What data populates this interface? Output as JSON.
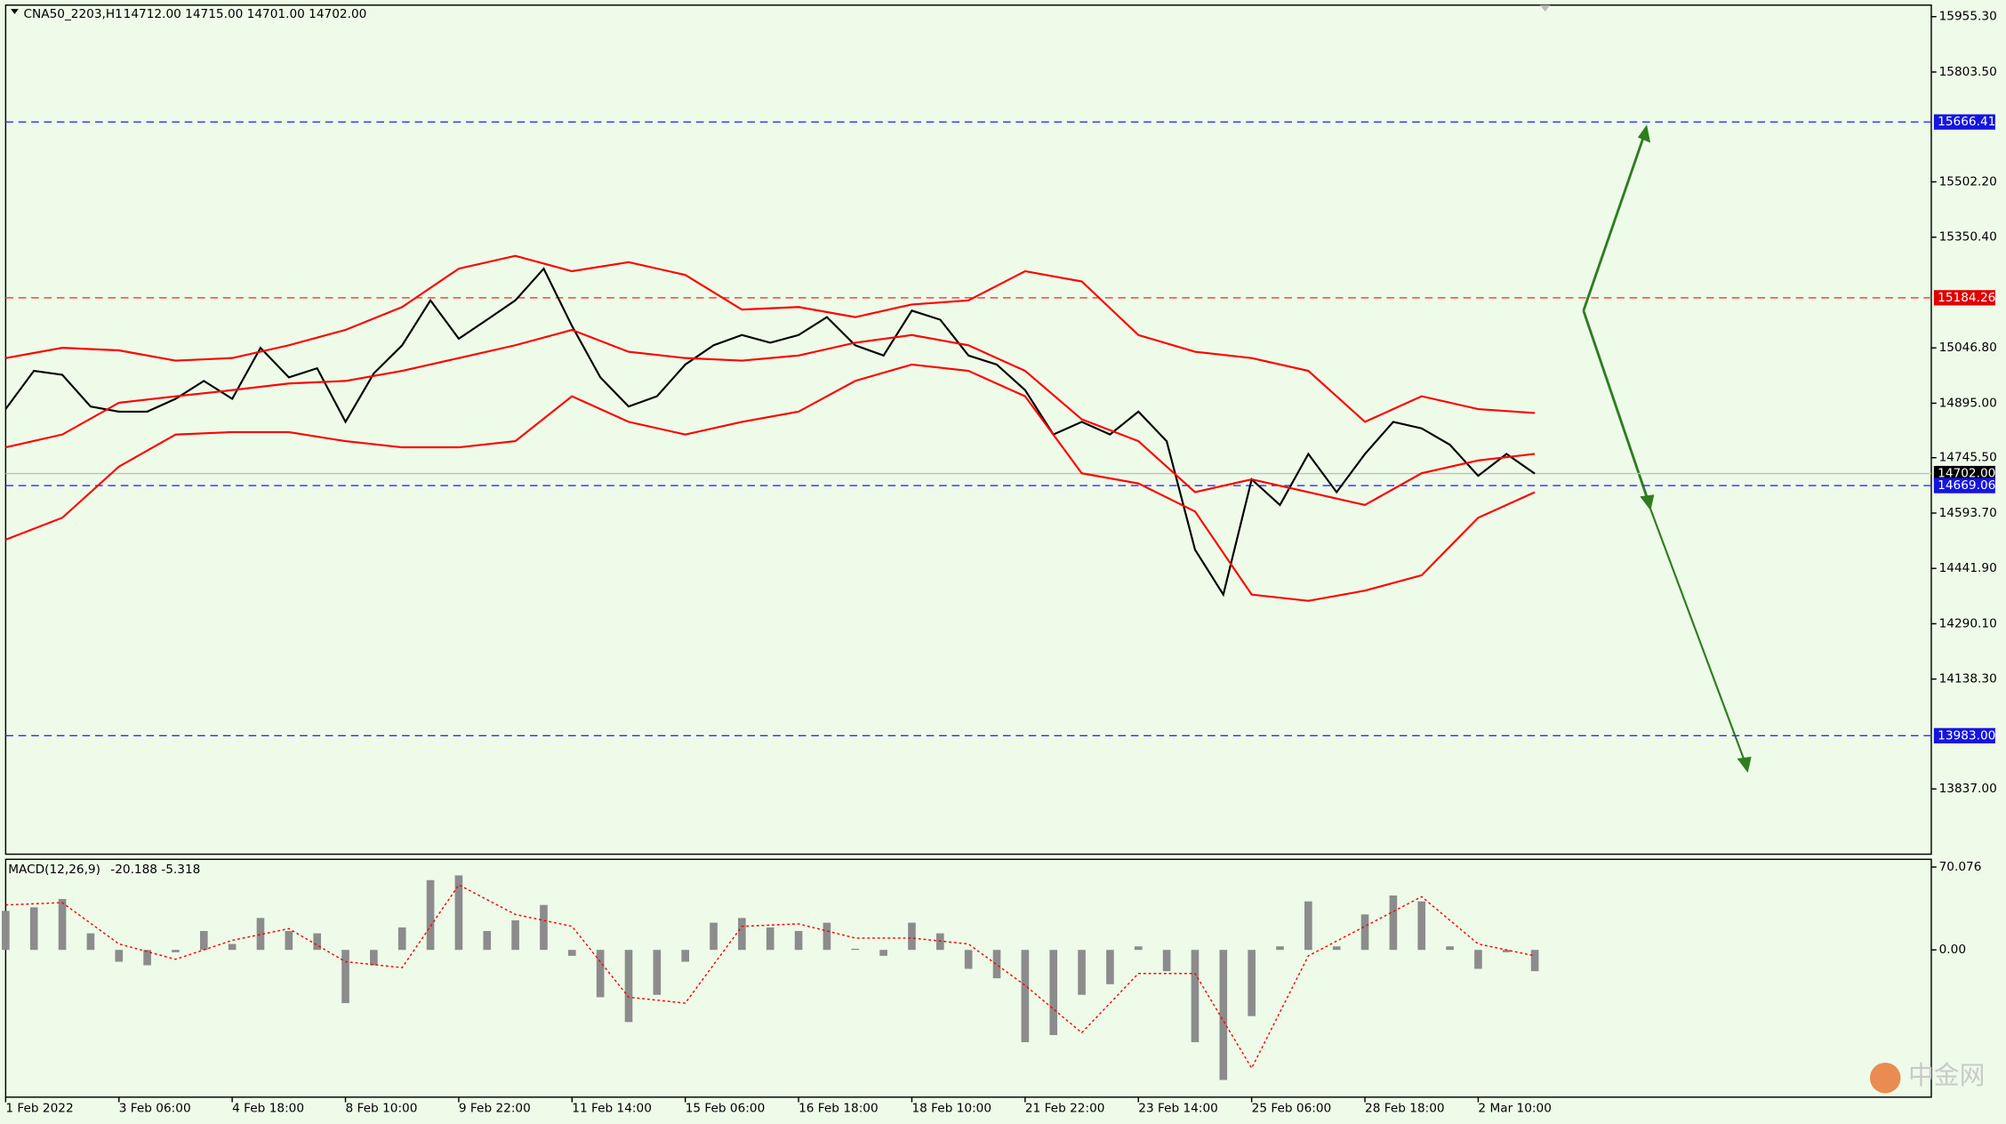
{
  "chart_data": [
    {
      "type": "line",
      "title": "CNA50_2203,H1",
      "subtitle": "14712.00 14715.00 14701.00 14702.00",
      "xlim": [
        0,
        68
      ],
      "ylim": [
        13658,
        15987
      ],
      "xticks": [
        {
          "value": 0,
          "label": "1 Feb 2022"
        },
        {
          "value": 4,
          "label": "3 Feb 06:00"
        },
        {
          "value": 8,
          "label": "4 Feb 18:00"
        },
        {
          "value": 12,
          "label": "8 Feb 10:00"
        },
        {
          "value": 16,
          "label": "9 Feb 22:00"
        },
        {
          "value": 20,
          "label": "11 Feb 14:00"
        },
        {
          "value": 24,
          "label": "15 Feb 06:00"
        },
        {
          "value": 28,
          "label": "16 Feb 18:00"
        },
        {
          "value": 32,
          "label": "18 Feb 10:00"
        },
        {
          "value": 36,
          "label": "21 Feb 22:00"
        },
        {
          "value": 40,
          "label": "23 Feb 14:00"
        },
        {
          "value": 44,
          "label": "25 Feb 06:00"
        },
        {
          "value": 48,
          "label": "28 Feb 18:00"
        },
        {
          "value": 52,
          "label": "2 Mar 10:00"
        }
      ],
      "yticks": [
        {
          "value": 15955.3,
          "label": "15955.30"
        },
        {
          "value": 15803.5,
          "label": "15803.50"
        },
        {
          "value": 15502.2,
          "label": "15502.20"
        },
        {
          "value": 15350.4,
          "label": "15350.40"
        },
        {
          "value": 15046.8,
          "label": "15046.80"
        },
        {
          "value": 14895,
          "label": "14895.00"
        },
        {
          "value": 14745.5,
          "label": "14745.50"
        },
        {
          "value": 14593.7,
          "label": "14593.70"
        },
        {
          "value": 14441.9,
          "label": "14441.90"
        },
        {
          "value": 14290.1,
          "label": "14290.10"
        },
        {
          "value": 14138.3,
          "label": "14138.30"
        },
        {
          "value": 13837,
          "label": "13837.00"
        }
      ],
      "levels": [
        {
          "value": 15666.41,
          "color": "#2a2aff",
          "label_bg": "#1515e0",
          "style": "dashed"
        },
        {
          "value": 15184.26,
          "color": "#ff4040",
          "label_bg": "#e00000",
          "style": "dashed"
        },
        {
          "value": 14702,
          "label": "14702.00",
          "color": "#c0c0c0",
          "label_bg": "#000000",
          "style": "solid"
        },
        {
          "value": 14669.06,
          "color": "#2a2aff",
          "label_bg": "#1515e0",
          "style": "dashed"
        },
        {
          "value": 13983,
          "label": "13983.00",
          "color": "#2a2aff",
          "label_bg": "#1515e0",
          "style": "dashed"
        }
      ],
      "series": [
        {
          "color": "#000000",
          "x": [
            0,
            1,
            2,
            3,
            4,
            5,
            6,
            7,
            8,
            9,
            10,
            11,
            12,
            13,
            14,
            15,
            16,
            17,
            18,
            19,
            20,
            21,
            22,
            23,
            24,
            25,
            26,
            27,
            28,
            29,
            30,
            31,
            32,
            33,
            34,
            35,
            36,
            37,
            38,
            39,
            40,
            41,
            42,
            43,
            44,
            45,
            46,
            47,
            48,
            49,
            50,
            51,
            52,
            53,
            54
          ],
          "values": [
            14879,
            14984,
            14973,
            14886,
            14872,
            14872,
            14907,
            14956,
            14907,
            15047,
            14966,
            14991,
            14844,
            14977,
            15054,
            15177,
            15072,
            15124,
            15177,
            15264,
            15107,
            14966,
            14886,
            14914,
            15001,
            15054,
            15082,
            15061,
            15082,
            15131,
            15054,
            15026,
            15149,
            15124,
            15026,
            15001,
            14931,
            14809,
            14844,
            14809,
            14872,
            14791,
            14493,
            14370,
            14686,
            14616,
            14756,
            14651,
            14756,
            14844,
            14826,
            14781,
            14696,
            14756,
            14702
          ]
        },
        {
          "color": "#ff0000",
          "x": [
            0,
            2,
            4,
            6,
            8,
            10,
            12,
            14,
            16,
            18,
            20,
            22,
            24,
            26,
            28,
            30,
            32,
            34,
            36,
            38,
            40,
            42,
            44,
            46,
            48,
            50,
            52,
            54
          ],
          "values": [
            15019,
            15047,
            15040,
            15012,
            15019,
            15054,
            15096,
            15159,
            15264,
            15299,
            15257,
            15282,
            15247,
            15152,
            15159,
            15131,
            15166,
            15177,
            15257,
            15229,
            15082,
            15036,
            15019,
            14984,
            14844,
            14914,
            14879,
            14868
          ]
        },
        {
          "color": "#ff0000",
          "x": [
            0,
            2,
            4,
            6,
            8,
            10,
            12,
            14,
            16,
            18,
            20,
            22,
            24,
            26,
            28,
            30,
            32,
            34,
            36,
            38,
            40,
            42,
            44,
            46,
            48,
            50,
            52,
            54
          ],
          "values": [
            14774,
            14809,
            14896,
            14914,
            14931,
            14949,
            14956,
            14984,
            15019,
            15054,
            15096,
            15036,
            15019,
            15012,
            15026,
            15061,
            15082,
            15054,
            14984,
            14851,
            14791,
            14651,
            14686,
            14651,
            14616,
            14703,
            14738,
            14756
          ]
        },
        {
          "color": "#ff0000",
          "x": [
            0,
            2,
            4,
            6,
            8,
            10,
            12,
            14,
            16,
            18,
            20,
            22,
            24,
            26,
            28,
            30,
            32,
            34,
            36,
            38,
            40,
            42,
            44,
            46,
            48,
            50,
            52,
            54
          ],
          "values": [
            14521,
            14581,
            14721,
            14809,
            14816,
            14816,
            14791,
            14774,
            14774,
            14791,
            14914,
            14844,
            14809,
            14844,
            14872,
            14956,
            15001,
            14984,
            14914,
            14703,
            14675,
            14598,
            14370,
            14353,
            14381,
            14423,
            14581,
            14651
          ]
        }
      ]
    },
    {
      "type": "bar",
      "title": "MACD(12,26,9)",
      "subtitle": "-20.188 -5.318",
      "xlim": [
        0,
        68
      ],
      "ylim": [
        -124.5,
        76.6
      ],
      "yticks": [
        {
          "value": 70.076,
          "label": "70.076"
        },
        {
          "value": 0,
          "label": "0.00"
        }
      ],
      "series": [
        {
          "type": "bar",
          "color": "#8c8c8c",
          "x": [
            0,
            1,
            2,
            3,
            4,
            5,
            6,
            7,
            8,
            9,
            10,
            11,
            12,
            13,
            14,
            15,
            16,
            17,
            18,
            19,
            20,
            21,
            22,
            23,
            24,
            25,
            26,
            27,
            28,
            29,
            30,
            31,
            32,
            33,
            34,
            35,
            36,
            37,
            38,
            39,
            40,
            41,
            42,
            43,
            44,
            45,
            46,
            47,
            48,
            49,
            50,
            51,
            52,
            53,
            54
          ],
          "values": [
            33,
            36,
            43,
            14,
            -10,
            -13,
            -2,
            16,
            5,
            27,
            16,
            14,
            -45,
            -13,
            19,
            59,
            63,
            16,
            25,
            38,
            -5,
            -40,
            -61,
            -38,
            -10,
            23,
            27,
            19,
            16,
            23,
            1,
            -5,
            23,
            14,
            -16,
            -24,
            -78,
            -72,
            -38,
            -29,
            3,
            -18,
            -78,
            -110,
            -56,
            3,
            41,
            3,
            30,
            46,
            41,
            3,
            -16,
            -2,
            -18
          ]
        },
        {
          "type": "line",
          "color": "#ff0000",
          "style": "dotted",
          "x": [
            0,
            2,
            4,
            6,
            8,
            10,
            12,
            14,
            16,
            18,
            20,
            22,
            24,
            26,
            28,
            30,
            32,
            34,
            36,
            38,
            40,
            42,
            44,
            46,
            48,
            50,
            52,
            54
          ],
          "values": [
            38,
            40,
            5,
            -8,
            8,
            18,
            -10,
            -15,
            55,
            30,
            20,
            -40,
            -45,
            20,
            22,
            10,
            10,
            5,
            -30,
            -70,
            -20,
            -20,
            -100,
            -5,
            20,
            45,
            5,
            -5
          ]
        }
      ]
    }
  ],
  "watermark": "中金网"
}
